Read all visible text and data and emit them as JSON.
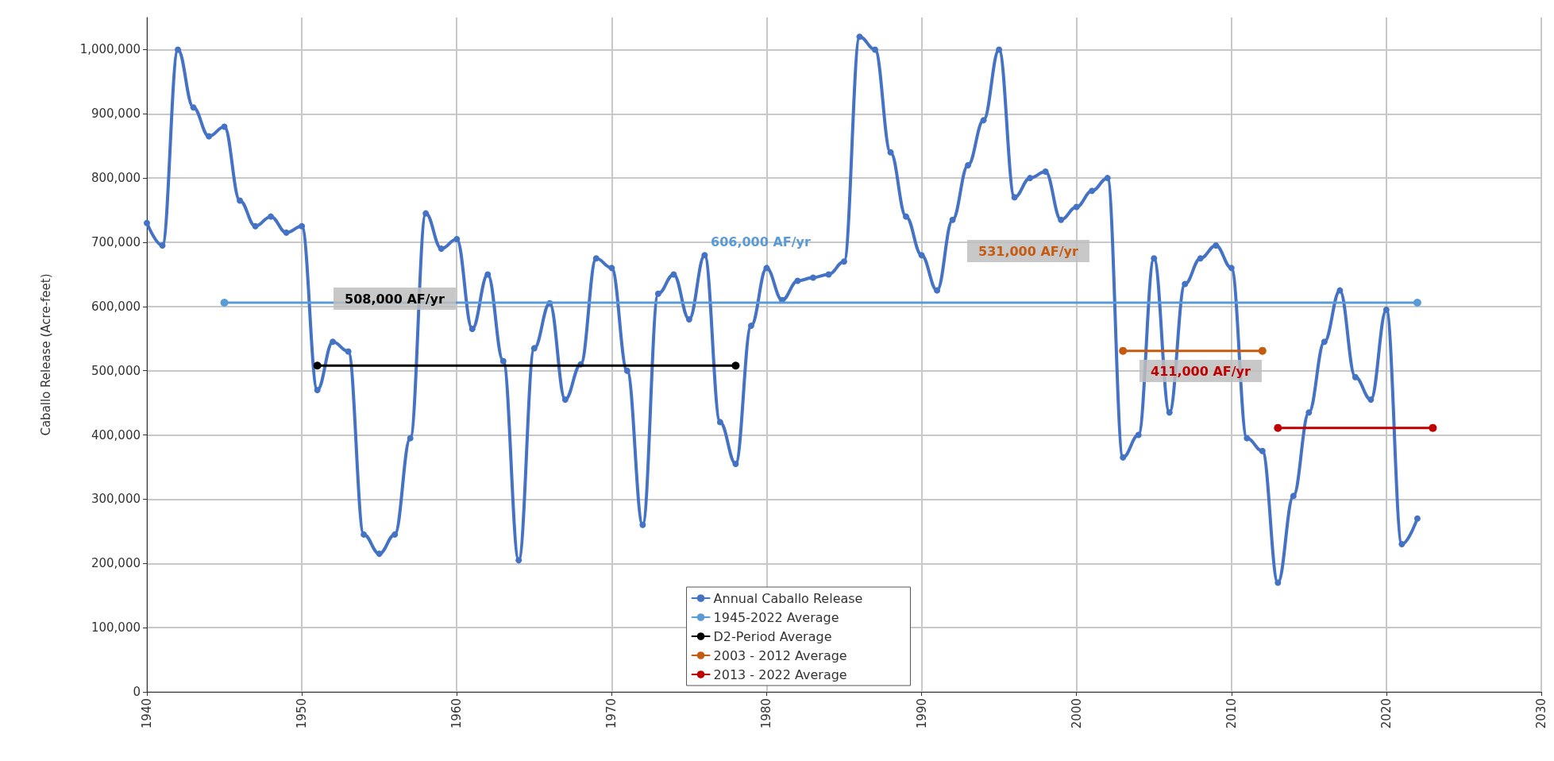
{
  "chart_data": {
    "type": "line",
    "ylabel": "Caballo Release (Acre-feet)",
    "x": [
      1940,
      1941,
      1942,
      1943,
      1944,
      1945,
      1946,
      1947,
      1948,
      1949,
      1950,
      1951,
      1952,
      1953,
      1954,
      1955,
      1956,
      1957,
      1958,
      1959,
      1960,
      1961,
      1962,
      1963,
      1964,
      1965,
      1966,
      1967,
      1968,
      1969,
      1970,
      1971,
      1972,
      1973,
      1974,
      1975,
      1976,
      1977,
      1978,
      1979,
      1980,
      1981,
      1982,
      1983,
      1984,
      1985,
      1986,
      1987,
      1988,
      1989,
      1990,
      1991,
      1992,
      1993,
      1994,
      1995,
      1996,
      1997,
      1998,
      1999,
      2000,
      2001,
      2002,
      2003,
      2004,
      2005,
      2006,
      2007,
      2008,
      2009,
      2010,
      2011,
      2012,
      2013,
      2014,
      2015,
      2016,
      2017,
      2018,
      2019,
      2020,
      2021,
      2022
    ],
    "series": [
      {
        "name": "Annual Caballo Release",
        "color": "#4472c4",
        "values": [
          730000,
          695000,
          1000000,
          910000,
          865000,
          880000,
          765000,
          725000,
          740000,
          715000,
          725000,
          470000,
          545000,
          530000,
          245000,
          215000,
          245000,
          395000,
          745000,
          690000,
          705000,
          565000,
          650000,
          515000,
          205000,
          535000,
          605000,
          455000,
          510000,
          675000,
          660000,
          500000,
          260000,
          620000,
          650000,
          580000,
          680000,
          420000,
          355000,
          570000,
          660000,
          610000,
          640000,
          645000,
          650000,
          670000,
          1020000,
          1000000,
          840000,
          740000,
          680000,
          625000,
          735000,
          820000,
          890000,
          1000000,
          770000,
          800000,
          810000,
          735000,
          755000,
          780000,
          800000,
          365000,
          400000,
          675000,
          435000,
          635000,
          675000,
          695000,
          660000,
          395000,
          375000,
          170000,
          305000,
          435000,
          545000,
          625000,
          490000,
          455000,
          595000,
          230000,
          270000
        ]
      },
      {
        "name": "1945-2022 Average",
        "color": "#5b9bd5",
        "x": [
          1945,
          2022
        ],
        "values": [
          606000,
          606000
        ]
      },
      {
        "name": "D2-Period Average",
        "color": "#000000",
        "x": [
          1951,
          1978
        ],
        "values": [
          508000,
          508000
        ]
      },
      {
        "name": "2003 - 2012 Average",
        "color": "#c55a11",
        "x": [
          2003,
          2012
        ],
        "values": [
          531000,
          531000
        ]
      },
      {
        "name": "2013 - 2022 Average",
        "color": "#c00000",
        "x": [
          2013,
          2023
        ],
        "values": [
          411000,
          411000
        ]
      }
    ],
    "annotations": [
      "606,000 AF/yr",
      "508,000 AF/yr",
      "531,000 AF/yr",
      "411,000 AF/yr"
    ],
    "xlim": [
      1940,
      2030
    ],
    "xticks": [
      1940,
      1950,
      1960,
      1970,
      1980,
      1990,
      2000,
      2010,
      2020,
      2030
    ],
    "ylim": [
      0,
      1050000
    ],
    "yticks": [
      {
        "value": 0,
        "label": "0"
      },
      {
        "value": 100000,
        "label": "100,000"
      },
      {
        "value": 200000,
        "label": "200,000"
      },
      {
        "value": 300000,
        "label": "300,000"
      },
      {
        "value": 400000,
        "label": "400,000"
      },
      {
        "value": 500000,
        "label": "500,000"
      },
      {
        "value": 600000,
        "label": "600,000"
      },
      {
        "value": 700000,
        "label": "700,000"
      },
      {
        "value": 800000,
        "label": "800,000"
      },
      {
        "value": 900000,
        "label": "900,000"
      },
      {
        "value": 1000000,
        "label": "1,000,000"
      }
    ],
    "grid": true,
    "legend": "bottom",
    "marker": "circle"
  }
}
